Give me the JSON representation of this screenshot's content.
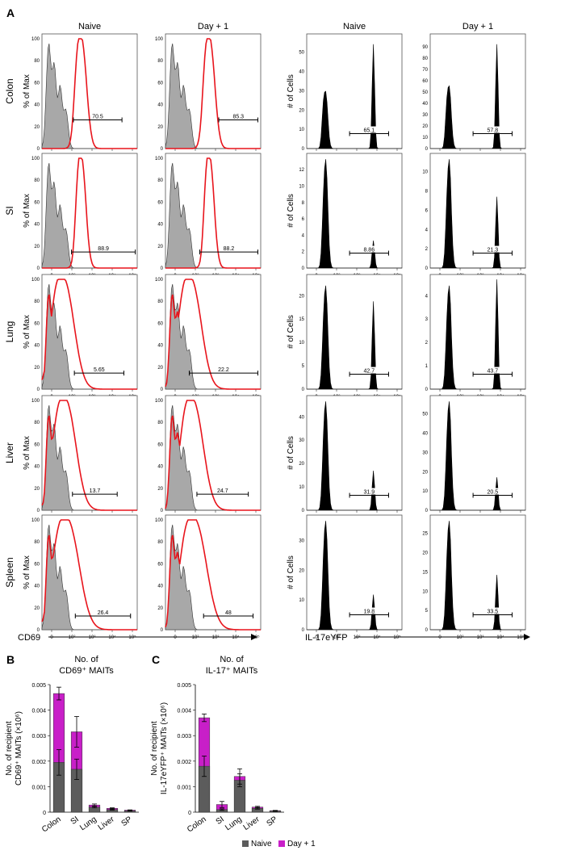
{
  "panel_labels": {
    "a": "A",
    "b": "B",
    "c": "C"
  },
  "colors": {
    "naive_fill": "#a8a8a8",
    "day1_line": "#e8141c",
    "il17_fill": "#000000",
    "bar_naive": "#5c5c5c",
    "bar_day1": "#c81fc8"
  },
  "panel_a": {
    "col_headers": [
      "Naive",
      "Day + 1",
      "Naive",
      "Day + 1"
    ],
    "tissues": [
      "Colon",
      "SI",
      "Lung",
      "Liver",
      "Spleen"
    ],
    "cd69_ylabel": "% of Max",
    "il17_ylabel": "# of Cells",
    "cd69_xlabel": "CD69",
    "il17_xlabel": "IL-17eYFP",
    "cd69_yticks": [
      "0",
      "20",
      "40",
      "60",
      "80",
      "100"
    ],
    "x_ticks": [
      "0",
      "10²",
      "10³",
      "10⁴",
      "10⁵"
    ],
    "cd69_gates": [
      [
        "70.5",
        "85.3"
      ],
      [
        "88.9",
        "88.2"
      ],
      [
        "5.65",
        "22.2"
      ],
      [
        "13.7",
        "24.7"
      ],
      [
        "26.4",
        "48"
      ]
    ],
    "il17_gates": [
      [
        "65.1",
        "57.8"
      ],
      [
        "8.86",
        "21.3"
      ],
      [
        "42.7",
        "43.7"
      ],
      [
        "31.9",
        "20.5"
      ],
      [
        "19.8",
        "33.5"
      ]
    ],
    "il17_yticks": [
      [
        [
          "0",
          "10",
          "20",
          "30",
          "40",
          "50"
        ],
        [
          "0",
          "10",
          "20",
          "30",
          "40",
          "50",
          "60",
          "70",
          "80",
          "90"
        ]
      ],
      [
        [
          "0",
          "2",
          "4",
          "6",
          "8",
          "10",
          "12"
        ],
        [
          "0",
          "2",
          "4",
          "6",
          "8",
          "10"
        ]
      ],
      [
        [
          "0",
          "5",
          "10",
          "15",
          "20"
        ],
        [
          "0",
          "1",
          "2",
          "3",
          "4"
        ]
      ],
      [
        [
          "0",
          "10",
          "20",
          "30",
          "40"
        ],
        [
          "0",
          "10",
          "20",
          "30",
          "40",
          "50"
        ]
      ],
      [
        [
          "0",
          "10",
          "20",
          "30"
        ],
        [
          "0",
          "5",
          "10",
          "15",
          "20",
          "25"
        ]
      ]
    ]
  },
  "chart_data": [
    {
      "type": "bar",
      "title": "No. of CD69⁺ MAITs",
      "ylabel": "No. of recipient CD69⁺ MAITs (×10⁶)",
      "categories": [
        "Colon",
        "SI",
        "Lung",
        "Liver",
        "SP"
      ],
      "ylim": [
        0,
        0.005
      ],
      "yticks": [
        "0",
        "0.001",
        "0.002",
        "0.003",
        "0.004",
        "0.005"
      ],
      "series": [
        {
          "name": "Naive",
          "values": [
            0.00195,
            0.00168,
            0.0002,
            0.0001,
            5e-05
          ],
          "errors": [
            0.0005,
            0.0004,
            3e-05,
            2e-05,
            1e-05
          ]
        },
        {
          "name": "Day + 1",
          "values": [
            0.00465,
            0.00315,
            0.00028,
            0.00015,
            8e-05
          ],
          "errors": [
            0.00025,
            0.0006,
            4e-05,
            2e-05,
            1e-05
          ]
        }
      ]
    },
    {
      "type": "bar",
      "title": "No. of IL-17⁺ MAITs",
      "ylabel": "No. of recipient IL-17eYFP⁺ MAITs (×10⁶)",
      "categories": [
        "Colon",
        "SI",
        "Lung",
        "Liver",
        "SP"
      ],
      "ylim": [
        0,
        0.005
      ],
      "yticks": [
        "0",
        "0.001",
        "0.002",
        "0.003",
        "0.004",
        "0.005"
      ],
      "series": [
        {
          "name": "Naive",
          "values": [
            0.0018,
            0.0001,
            0.00125,
            0.00015,
            4e-05
          ],
          "errors": [
            0.0004,
            3e-05,
            0.00025,
            3e-05,
            1e-05
          ]
        },
        {
          "name": "Day + 1",
          "values": [
            0.0037,
            0.0003,
            0.0014,
            0.0002,
            6e-05
          ],
          "errors": [
            0.00015,
            0.00012,
            0.0003,
            3e-05,
            1e-05
          ]
        }
      ]
    }
  ],
  "legend": [
    "Naive",
    "Day + 1"
  ]
}
